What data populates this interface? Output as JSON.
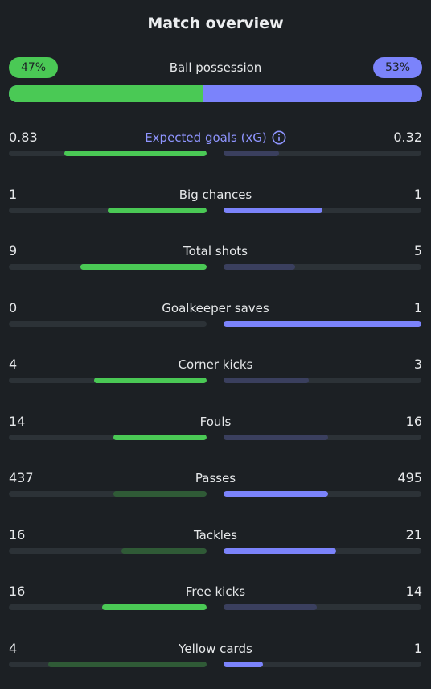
{
  "title": "Match overview",
  "possession": {
    "label": "Ball possession",
    "home_text": "47%",
    "away_text": "53%",
    "home_value": 47,
    "away_value": 53
  },
  "colors": {
    "home_strong": "#4ac955",
    "home_weak": "#2f5a36",
    "away_strong": "#7b83fb",
    "away_weak": "#3a3f5e",
    "accent_text": "#8f95ff"
  },
  "stats": [
    {
      "label": "Expected goals (xG)",
      "home": "0.83",
      "away": "0.32",
      "home_ratio": 0.72,
      "away_ratio": 0.28,
      "home_lead": true,
      "away_lead": false,
      "has_info": true
    },
    {
      "label": "Big chances",
      "home": "1",
      "away": "1",
      "home_ratio": 0.5,
      "away_ratio": 0.5,
      "home_lead": true,
      "away_lead": true
    },
    {
      "label": "Total shots",
      "home": "9",
      "away": "5",
      "home_ratio": 0.64,
      "away_ratio": 0.36,
      "home_lead": true,
      "away_lead": false
    },
    {
      "label": "Goalkeeper saves",
      "home": "0",
      "away": "1",
      "home_ratio": 0.0,
      "away_ratio": 1.0,
      "home_lead": false,
      "away_lead": true
    },
    {
      "label": "Corner kicks",
      "home": "4",
      "away": "3",
      "home_ratio": 0.57,
      "away_ratio": 0.43,
      "home_lead": true,
      "away_lead": false
    },
    {
      "label": "Fouls",
      "home": "14",
      "away": "16",
      "home_ratio": 0.47,
      "away_ratio": 0.53,
      "home_lead": true,
      "away_lead": false
    },
    {
      "label": "Passes",
      "home": "437",
      "away": "495",
      "home_ratio": 0.47,
      "away_ratio": 0.53,
      "home_lead": false,
      "away_lead": true
    },
    {
      "label": "Tackles",
      "home": "16",
      "away": "21",
      "home_ratio": 0.43,
      "away_ratio": 0.57,
      "home_lead": false,
      "away_lead": true
    },
    {
      "label": "Free kicks",
      "home": "16",
      "away": "14",
      "home_ratio": 0.53,
      "away_ratio": 0.47,
      "home_lead": true,
      "away_lead": false
    },
    {
      "label": "Yellow cards",
      "home": "4",
      "away": "1",
      "home_ratio": 0.8,
      "away_ratio": 0.2,
      "home_lead": false,
      "away_lead": true
    }
  ]
}
